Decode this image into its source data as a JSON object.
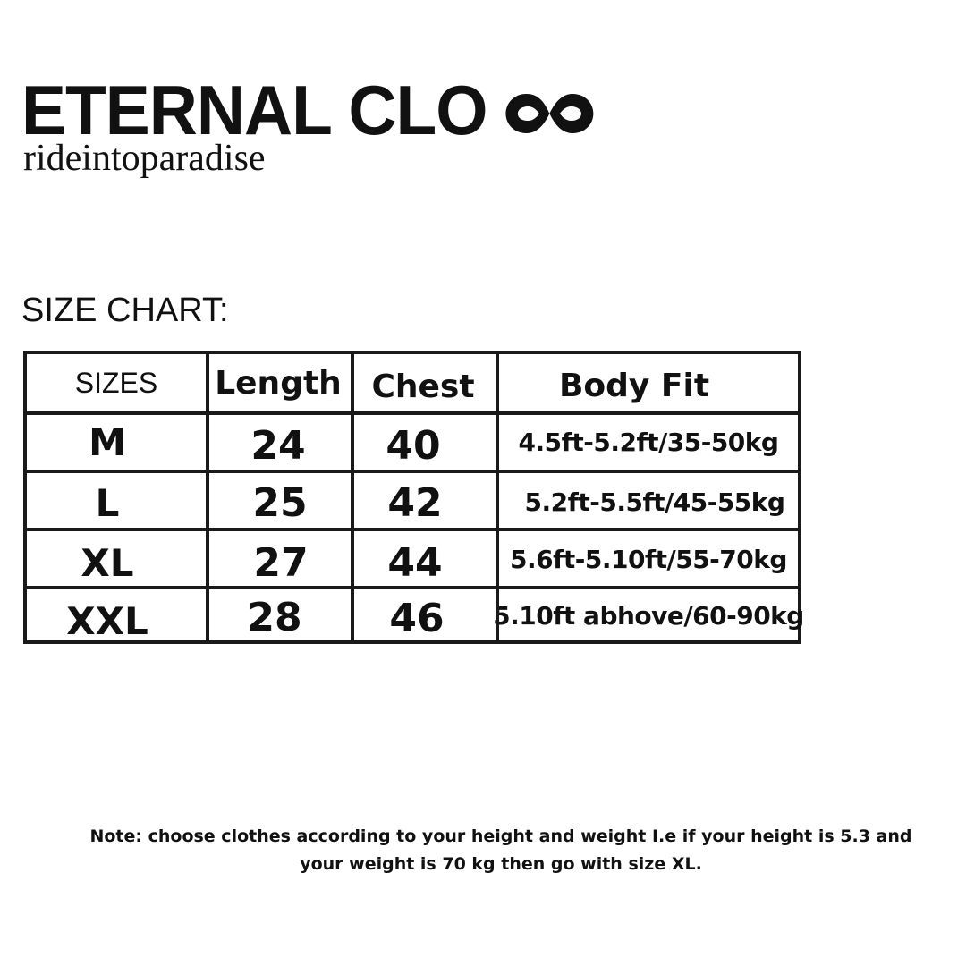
{
  "brand": {
    "name": "ETERNAL CLO",
    "logo_icon": "infinity-icon",
    "tagline": "rideintoparadise"
  },
  "section": {
    "heading": "SIZE CHART:"
  },
  "size_table": {
    "headers": [
      "SIZES",
      "Length",
      "Chest",
      "Body Fit"
    ],
    "rows": [
      {
        "size": "M",
        "length": "24",
        "chest": "40",
        "body_fit": "4.5ft-5.2ft/35-50kg"
      },
      {
        "size": "L",
        "length": "25",
        "chest": "42",
        "body_fit": "5.2ft-5.5ft/45-55kg"
      },
      {
        "size": "XL",
        "length": "27",
        "chest": "44",
        "body_fit": "5.6ft-5.10ft/55-70kg"
      },
      {
        "size": "XXL",
        "length": "28",
        "chest": "46",
        "body_fit": "5.10ft abhove/60-90kg"
      }
    ]
  },
  "note": {
    "text": "Note: choose clothes according to your height and weight I.e if your height is 5.3 and your weight is 70 kg then go with size XL."
  },
  "colors": {
    "text": "#111111",
    "border": "#1a1a1a",
    "background": "#ffffff"
  }
}
